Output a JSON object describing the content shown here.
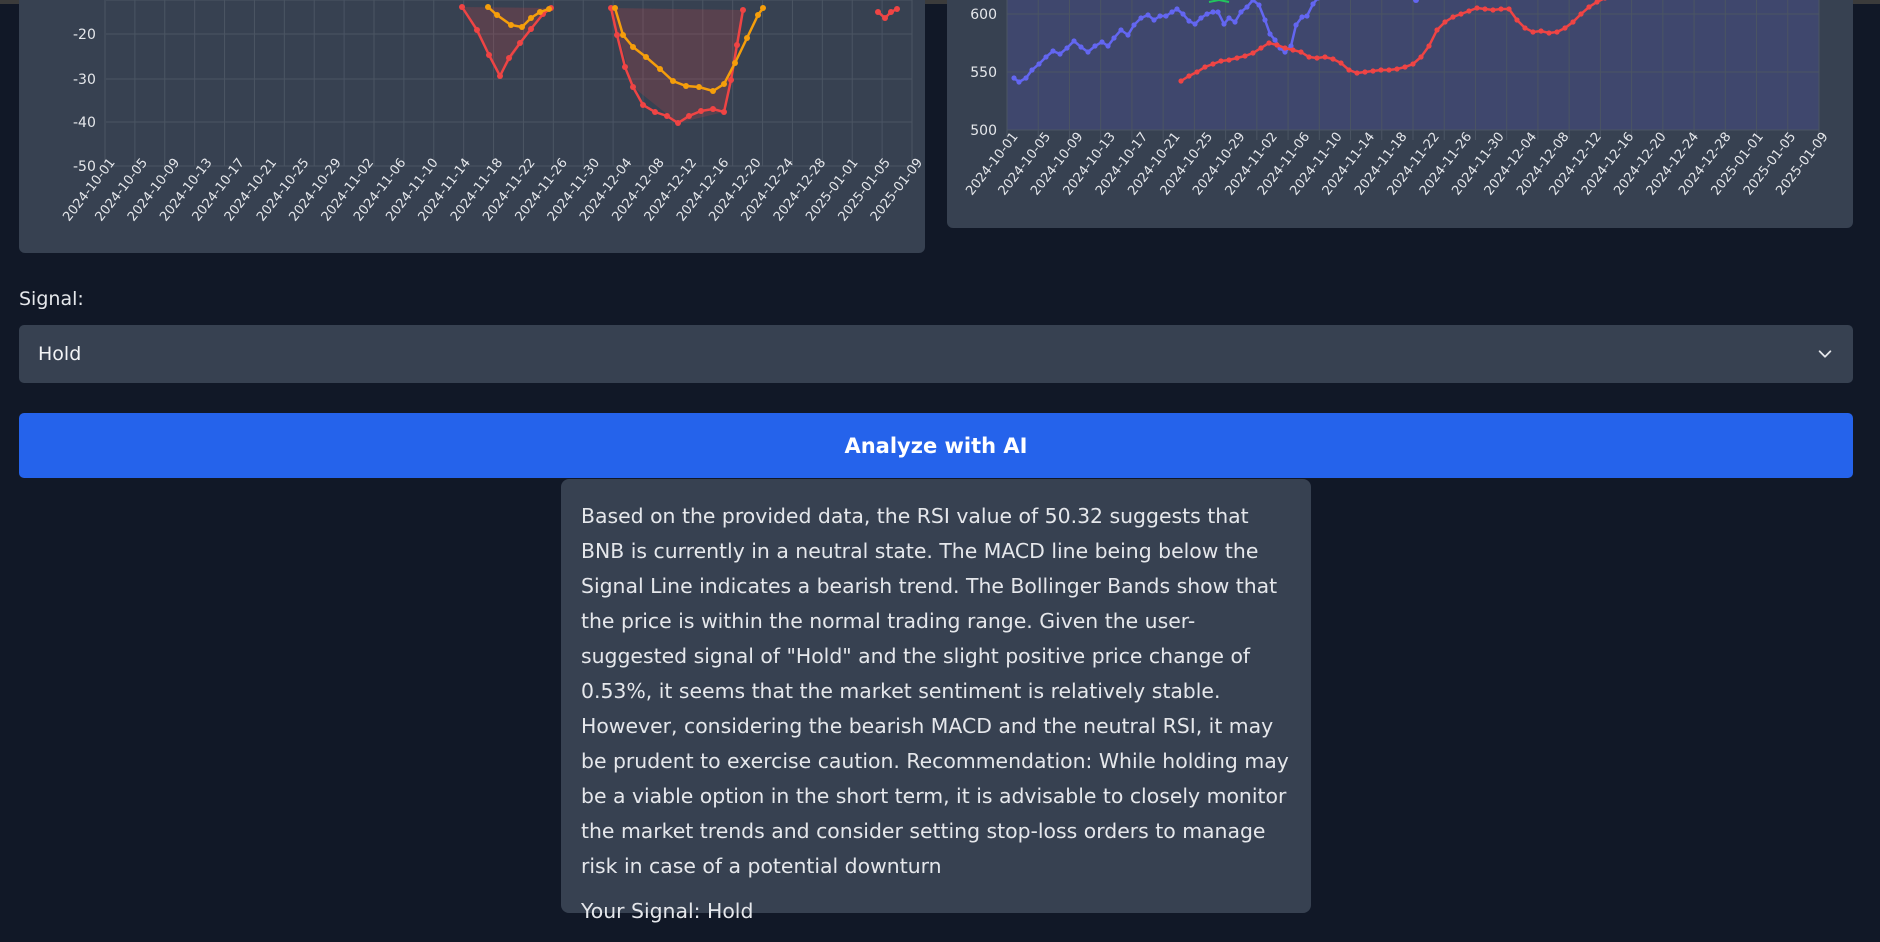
{
  "charts": {
    "left": {
      "y_ticks": [
        "-20",
        "-30",
        "-40",
        "-50"
      ],
      "dates": [
        "2024-10-01",
        "2024-10-05",
        "2024-10-09",
        "2024-10-13",
        "2024-10-17",
        "2024-10-21",
        "2024-10-25",
        "2024-10-29",
        "2024-11-02",
        "2024-11-06",
        "2024-11-10",
        "2024-11-14",
        "2024-11-18",
        "2024-11-22",
        "2024-11-26",
        "2024-11-30",
        "2024-12-04",
        "2024-12-08",
        "2024-12-12",
        "2024-12-16",
        "2024-12-20",
        "2024-12-24",
        "2024-12-28",
        "2025-01-01",
        "2025-01-05",
        "2025-01-09"
      ],
      "colors": {
        "red": "#ef4444",
        "orange": "#f59e0b"
      }
    },
    "right": {
      "y_ticks": [
        "600",
        "550",
        "500"
      ],
      "dates": [
        "2024-10-01",
        "2024-10-05",
        "2024-10-09",
        "2024-10-13",
        "2024-10-17",
        "2024-10-21",
        "2024-10-25",
        "2024-10-29",
        "2024-11-02",
        "2024-11-06",
        "2024-11-10",
        "2024-11-14",
        "2024-11-18",
        "2024-11-22",
        "2024-11-26",
        "2024-11-30",
        "2024-12-04",
        "2024-12-08",
        "2024-12-12",
        "2024-12-16",
        "2024-12-20",
        "2024-12-24",
        "2024-12-28",
        "2025-01-01",
        "2025-01-05",
        "2025-01-09"
      ],
      "colors": {
        "blue": "#6366f1",
        "red": "#ef4444",
        "green": "#22c55e"
      }
    }
  },
  "signal": {
    "label": "Signal:",
    "selected": "Hold"
  },
  "analyze_button": {
    "label": "Analyze with AI"
  },
  "result": {
    "text": "Based on the provided data, the RSI value of 50.32 suggests that BNB is currently in a neutral state. The MACD line being below the Signal Line indicates a bearish trend. The Bollinger Bands show that the price is within the normal trading range. Given the user-suggested signal of \"Hold\" and the slight positive price change of 0.53%, it seems that the market sentiment is relatively stable. However, considering the bearish MACD and the neutral RSI, it may be prudent to exercise caution. Recommendation: While holding may be a viable option in the short term, it is advisable to closely monitor the market trends and consider setting stop-loss orders to manage risk in case of a potential downturn",
    "your_signal": "Your Signal: Hold"
  }
}
